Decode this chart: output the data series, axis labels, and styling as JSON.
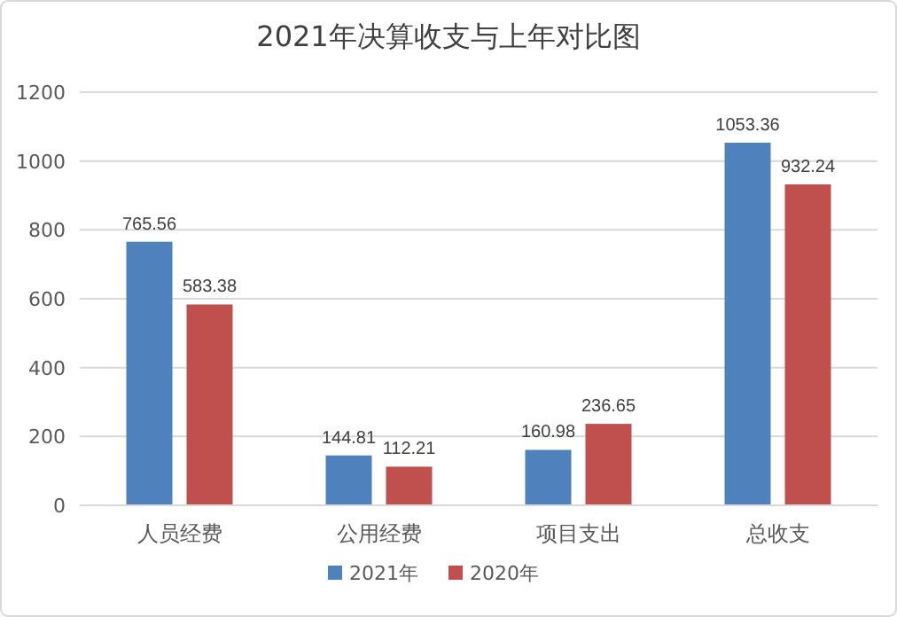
{
  "chart_data": {
    "type": "bar",
    "title": "2021年决算收支与上年对比图",
    "categories": [
      "人员经费",
      "公用经费",
      "项目支出",
      "总收支"
    ],
    "series": [
      {
        "name": "2021年",
        "color": "#4f81bd",
        "values": [
          765.56,
          144.81,
          160.98,
          1053.36
        ]
      },
      {
        "name": "2020年",
        "color": "#c0504d",
        "values": [
          583.38,
          112.21,
          236.65,
          932.24
        ]
      }
    ],
    "ylim": [
      0,
      1200
    ],
    "yticks": [
      0,
      200,
      400,
      600,
      800,
      1000,
      1200
    ],
    "grid": "y",
    "legend": "bottom",
    "data_labels": true
  }
}
